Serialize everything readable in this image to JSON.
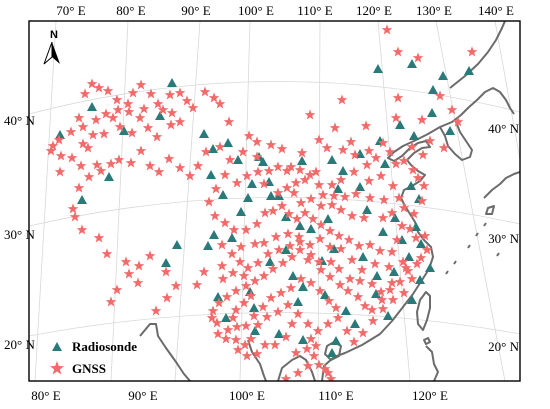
{
  "map": {
    "top_lon_labels": [
      "70° E",
      "80° E",
      "90° E",
      "100° E",
      "110° E",
      "120° E",
      "130° E",
      "140° E"
    ],
    "bottom_lon_labels": [
      "80° E",
      "90° E",
      "100° E",
      "110° E",
      "120° E"
    ],
    "left_lat_labels": [
      "40° N",
      "30° N",
      "20° N"
    ],
    "right_lat_labels": [
      "40° N",
      "30° N",
      "20° N"
    ],
    "north_label": "N",
    "legend": [
      {
        "name": "Radiosonde",
        "symbol": "triangle",
        "color": "#2a7a7a"
      },
      {
        "name": "GNSS",
        "symbol": "star",
        "color": "#f26b6b"
      }
    ],
    "colors": {
      "radiosonde": "#2a7a7a",
      "gnss": "#f26b6b",
      "coast": "#6b6b6b",
      "grid": "#d8d8d8",
      "frame": "#000000"
    }
  }
}
